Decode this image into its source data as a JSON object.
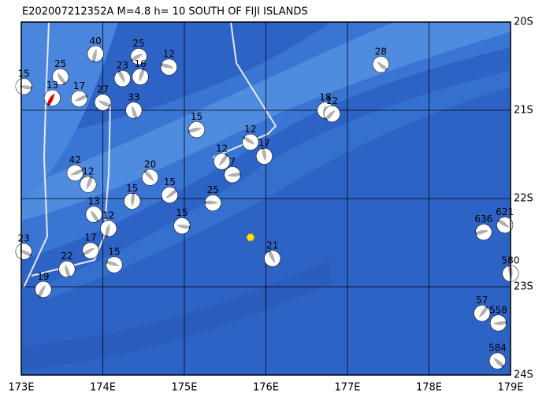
{
  "chart_data": {
    "type": "map",
    "title": "E202007212352A M=4.8 h= 10 SOUTH OF FIJI ISLANDS",
    "xlim": [
      173,
      179
    ],
    "ylim": [
      -24,
      -20
    ],
    "xticks": [
      {
        "value": 173,
        "label": "173E"
      },
      {
        "value": 174,
        "label": "174E"
      },
      {
        "value": 175,
        "label": "175E"
      },
      {
        "value": 176,
        "label": "176E"
      },
      {
        "value": 177,
        "label": "177E"
      },
      {
        "value": 178,
        "label": "178E"
      },
      {
        "value": 179,
        "label": "179E"
      }
    ],
    "yticks": [
      {
        "value": -20,
        "label": "20S"
      },
      {
        "value": -21,
        "label": "21S"
      },
      {
        "value": -22,
        "label": "22S"
      },
      {
        "value": -23,
        "label": "23S"
      },
      {
        "value": -24,
        "label": "24S"
      }
    ],
    "grid": true,
    "epicenter": {
      "x": 175.81,
      "y": -22.44,
      "color": "#ffe600"
    },
    "events": [
      {
        "x": 173.03,
        "y": -20.73,
        "label": "15"
      },
      {
        "x": 173.48,
        "y": -20.62,
        "label": "25"
      },
      {
        "x": 173.91,
        "y": -20.36,
        "label": "40"
      },
      {
        "x": 174.44,
        "y": -20.39,
        "label": "25"
      },
      {
        "x": 174.81,
        "y": -20.51,
        "label": "12"
      },
      {
        "x": 174.24,
        "y": -20.64,
        "label": "23"
      },
      {
        "x": 174.46,
        "y": -20.62,
        "label": "16"
      },
      {
        "x": 173.71,
        "y": -20.87,
        "label": "17"
      },
      {
        "x": 174.0,
        "y": -20.91,
        "label": "27"
      },
      {
        "x": 174.38,
        "y": -21.0,
        "label": "33"
      },
      {
        "x": 173.38,
        "y": -20.86,
        "label": "13",
        "color": "#e00000"
      },
      {
        "x": 175.15,
        "y": -21.22,
        "label": "15"
      },
      {
        "x": 175.81,
        "y": -21.36,
        "label": "12"
      },
      {
        "x": 175.98,
        "y": -21.52,
        "label": "17"
      },
      {
        "x": 175.46,
        "y": -21.58,
        "label": "12"
      },
      {
        "x": 175.59,
        "y": -21.73,
        "label": "7"
      },
      {
        "x": 177.41,
        "y": -20.48,
        "label": "28"
      },
      {
        "x": 176.73,
        "y": -21.0,
        "label": "18"
      },
      {
        "x": 176.81,
        "y": -21.04,
        "label": "12"
      },
      {
        "x": 175.35,
        "y": -22.05,
        "label": "25"
      },
      {
        "x": 174.58,
        "y": -21.76,
        "label": "20"
      },
      {
        "x": 174.36,
        "y": -22.03,
        "label": "15"
      },
      {
        "x": 174.82,
        "y": -21.96,
        "label": "15"
      },
      {
        "x": 174.97,
        "y": -22.31,
        "label": "15"
      },
      {
        "x": 173.89,
        "y": -22.18,
        "label": "13"
      },
      {
        "x": 174.07,
        "y": -22.34,
        "label": "12"
      },
      {
        "x": 173.85,
        "y": -22.59,
        "label": "17"
      },
      {
        "x": 174.14,
        "y": -22.75,
        "label": "15"
      },
      {
        "x": 176.08,
        "y": -22.68,
        "label": "21"
      },
      {
        "x": 173.82,
        "y": -21.84,
        "label": "12"
      },
      {
        "x": 173.66,
        "y": -21.71,
        "label": "42"
      },
      {
        "x": 173.03,
        "y": -22.6,
        "label": "23"
      },
      {
        "x": 173.56,
        "y": -22.8,
        "label": "22"
      },
      {
        "x": 173.27,
        "y": -23.03,
        "label": "19"
      },
      {
        "x": 178.67,
        "y": -22.38,
        "label": "636"
      },
      {
        "x": 178.93,
        "y": -22.3,
        "label": "621"
      },
      {
        "x": 179.0,
        "y": -22.85,
        "label": "580"
      },
      {
        "x": 178.65,
        "y": -23.3,
        "label": "57"
      },
      {
        "x": 178.85,
        "y": -23.41,
        "label": "558"
      },
      {
        "x": 178.84,
        "y": -23.84,
        "label": "584"
      }
    ]
  }
}
